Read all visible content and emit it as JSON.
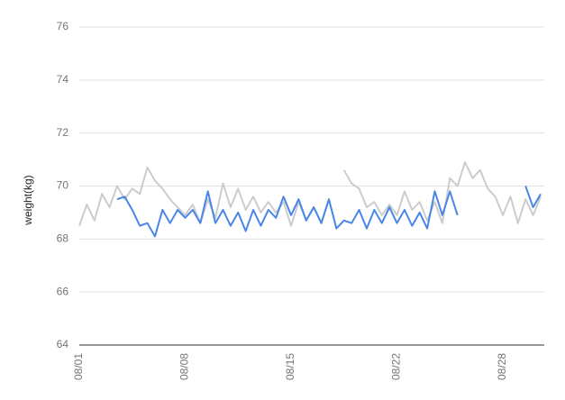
{
  "chart_data": {
    "type": "line",
    "y_label": "weight(kg)",
    "categories": [
      "08/01",
      null,
      null,
      null,
      null,
      null,
      null,
      null,
      null,
      null,
      null,
      null,
      null,
      null,
      "08/08",
      null,
      null,
      null,
      null,
      null,
      null,
      null,
      null,
      null,
      null,
      null,
      null,
      null,
      "08/15",
      null,
      null,
      null,
      null,
      null,
      null,
      null,
      null,
      null,
      null,
      null,
      null,
      null,
      "08/22",
      null,
      null,
      null,
      null,
      null,
      null,
      null,
      null,
      null,
      null,
      null,
      null,
      null,
      "08/28",
      null,
      null,
      null,
      null,
      null
    ],
    "series": [
      {
        "color": "#cccccc",
        "values": [
          68.5,
          69.3,
          68.7,
          69.7,
          69.2,
          70.0,
          69.5,
          69.9,
          69.7,
          70.7,
          70.2,
          69.9,
          69.5,
          69.2,
          68.9,
          69.3,
          68.6,
          69.5,
          68.8,
          70.1,
          69.2,
          69.9,
          69.1,
          69.6,
          69.0,
          69.4,
          69.0,
          69.4,
          68.5,
          69.4,
          68.7,
          69.2,
          68.6,
          69.5,
          null,
          70.6,
          70.1,
          69.9,
          69.2,
          69.4,
          68.9,
          69.3,
          68.9,
          69.8,
          69.1,
          69.4,
          68.7,
          69.4,
          68.6,
          70.3,
          70.0,
          70.9,
          70.3,
          70.6,
          69.9,
          69.6,
          68.9,
          69.6,
          68.6,
          69.5,
          68.9,
          69.6
        ]
      },
      {
        "color": "#4a86e8",
        "values": [
          null,
          null,
          null,
          null,
          null,
          69.5,
          69.6,
          69.1,
          68.5,
          68.6,
          68.1,
          69.1,
          68.6,
          69.1,
          68.8,
          69.1,
          68.6,
          69.8,
          68.6,
          69.1,
          68.5,
          69.0,
          68.3,
          69.1,
          68.5,
          69.1,
          68.8,
          69.6,
          68.9,
          69.5,
          68.7,
          69.2,
          68.6,
          69.5,
          68.4,
          68.7,
          68.6,
          69.1,
          68.4,
          69.1,
          68.6,
          69.2,
          68.6,
          69.1,
          68.5,
          69.0,
          68.4,
          69.8,
          68.9,
          69.8,
          68.9,
          null,
          null,
          null,
          null,
          null,
          null,
          null,
          null,
          70.0,
          69.2,
          69.7
        ]
      }
    ],
    "ylim": [
      64,
      76
    ],
    "yticks": [
      64,
      66,
      68,
      70,
      72,
      74,
      76
    ],
    "grid": true
  }
}
